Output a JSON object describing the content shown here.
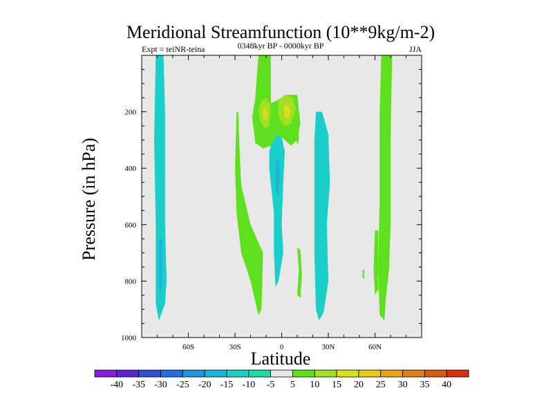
{
  "chart_data": {
    "type": "contour",
    "title": "Meridional Streamfunction (10**9kg/m-2)",
    "subtitle_left": "Expt = teiNR-teina",
    "subtitle_center": "0348kyr BP - 0000kyr BP",
    "subtitle_right": "JJA",
    "xlabel": "Latitude",
    "ylabel": "Pressure (in hPa)",
    "xlim": [
      -90,
      90
    ],
    "ylim": [
      1000,
      0
    ],
    "x_ticks": [
      {
        "value": -60,
        "label": "60S"
      },
      {
        "value": -30,
        "label": "30S"
      },
      {
        "value": 0,
        "label": "0"
      },
      {
        "value": 30,
        "label": "30N"
      },
      {
        "value": 60,
        "label": "60N"
      }
    ],
    "y_ticks": [
      {
        "value": 200,
        "label": "200"
      },
      {
        "value": 400,
        "label": "400"
      },
      {
        "value": 600,
        "label": "600"
      },
      {
        "value": 800,
        "label": "800"
      },
      {
        "value": 1000,
        "label": "1000"
      }
    ],
    "colorbar": {
      "labels": [
        "-40",
        "-35",
        "-30",
        "-25",
        "-20",
        "-15",
        "-10",
        "-5",
        "5",
        "10",
        "15",
        "20",
        "25",
        "30",
        "35",
        "40"
      ],
      "colors": [
        "#8a1be0",
        "#5a24d6",
        "#2f4fdc",
        "#1f6fe6",
        "#1b97e0",
        "#19b6d8",
        "#19cfc8",
        "#1ed9a8",
        "#e8e8e8",
        "#5fe01e",
        "#a0e020",
        "#d4e020",
        "#e8c818",
        "#e8a416",
        "#e07e14",
        "#dc5a12",
        "#d8300e"
      ]
    },
    "regions": [
      {
        "name": "sh-polar-negative-cell",
        "level": -10,
        "points": [
          [
            -81,
            0
          ],
          [
            -76,
            0
          ],
          [
            -75,
            200
          ],
          [
            -75,
            400
          ],
          [
            -75,
            600
          ],
          [
            -74,
            800
          ],
          [
            -75,
            880
          ],
          [
            -79,
            940
          ],
          [
            -81,
            880
          ],
          [
            -81,
            600
          ],
          [
            -82,
            300
          ]
        ]
      },
      {
        "name": "sh-polar-inner-core",
        "level": -15,
        "points": [
          [
            -79,
            650
          ],
          [
            -77,
            650
          ],
          [
            -77,
            800
          ],
          [
            -78,
            860
          ],
          [
            -79,
            800
          ]
        ]
      },
      {
        "name": "nh-highlat-positive-cell",
        "level": 5,
        "points": [
          [
            64,
            0
          ],
          [
            71,
            0
          ],
          [
            70,
            300
          ],
          [
            70,
            600
          ],
          [
            69,
            760
          ],
          [
            67,
            860
          ],
          [
            66,
            940
          ],
          [
            63,
            920
          ],
          [
            62,
            760
          ],
          [
            63,
            500
          ],
          [
            63,
            200
          ]
        ]
      },
      {
        "name": "nh-highlat-small-patch",
        "level": 5,
        "points": [
          [
            60,
            620
          ],
          [
            62,
            620
          ],
          [
            62,
            830
          ],
          [
            60,
            850
          ],
          [
            59,
            760
          ]
        ]
      },
      {
        "name": "nh-highlat-tiny-patch",
        "level": 5,
        "points": [
          [
            52,
            760
          ],
          [
            53,
            760
          ],
          [
            53,
            790
          ],
          [
            52,
            790
          ]
        ]
      },
      {
        "name": "tropical-upper-positive-cell",
        "level": 5,
        "points": [
          [
            -15,
            0
          ],
          [
            -7,
            0
          ],
          [
            -7,
            170
          ],
          [
            -3,
            160
          ],
          [
            3,
            140
          ],
          [
            10,
            140
          ],
          [
            12,
            240
          ],
          [
            10,
            300
          ],
          [
            6,
            320
          ],
          [
            0,
            290
          ],
          [
            -3,
            280
          ],
          [
            -7,
            320
          ],
          [
            -12,
            330
          ],
          [
            -17,
            310
          ],
          [
            -19,
            220
          ],
          [
            -17,
            150
          ]
        ]
      },
      {
        "name": "tropical-upper-core-left",
        "level": 10,
        "points": [
          [
            -13,
            160
          ],
          [
            -10,
            150
          ],
          [
            -7,
            180
          ],
          [
            -8,
            250
          ],
          [
            -11,
            260
          ],
          [
            -14,
            230
          ],
          [
            -15,
            190
          ]
        ]
      },
      {
        "name": "tropical-upper-core-right",
        "level": 10,
        "points": [
          [
            -2,
            160
          ],
          [
            2,
            140
          ],
          [
            7,
            150
          ],
          [
            9,
            190
          ],
          [
            6,
            240
          ],
          [
            2,
            250
          ],
          [
            -2,
            220
          ]
        ]
      },
      {
        "name": "tropical-upper-maximum-left",
        "level": 15,
        "points": [
          [
            -12,
            190
          ],
          [
            -10,
            185
          ],
          [
            -9,
            210
          ],
          [
            -10,
            230
          ],
          [
            -12,
            225
          ]
        ]
      },
      {
        "name": "tropical-upper-maximum-right",
        "level": 15,
        "points": [
          [
            1,
            180
          ],
          [
            4,
            175
          ],
          [
            6,
            200
          ],
          [
            4,
            225
          ],
          [
            2,
            220
          ]
        ]
      },
      {
        "name": "sh-subtropical-positive-band",
        "level": 5,
        "points": [
          [
            -29,
            200
          ],
          [
            -28,
            200
          ],
          [
            -27,
            350
          ],
          [
            -26,
            460
          ],
          [
            -20,
            600
          ],
          [
            -12,
            700
          ],
          [
            -13,
            900
          ],
          [
            -15,
            920
          ],
          [
            -20,
            800
          ],
          [
            -26,
            700
          ],
          [
            -29,
            560
          ],
          [
            -30,
            400
          ]
        ]
      },
      {
        "name": "tropical-lower-positive-streak",
        "level": 5,
        "points": [
          [
            10,
            680
          ],
          [
            12,
            690
          ],
          [
            13,
            780
          ],
          [
            12,
            860
          ],
          [
            10,
            850
          ],
          [
            11,
            760
          ]
        ]
      },
      {
        "name": "tropical-small-positive-patch",
        "level": 5,
        "points": [
          [
            9,
            190
          ],
          [
            11,
            190
          ],
          [
            11,
            300
          ],
          [
            10,
            320
          ],
          [
            9,
            260
          ]
        ]
      },
      {
        "name": "tropical-negative-cell",
        "level": -10,
        "points": [
          [
            -7,
            320
          ],
          [
            -3,
            280
          ],
          [
            0,
            290
          ],
          [
            2,
            340
          ],
          [
            1,
            450
          ],
          [
            0,
            600
          ],
          [
            1,
            700
          ],
          [
            -2,
            800
          ],
          [
            -4,
            820
          ],
          [
            -5,
            700
          ],
          [
            -5,
            560
          ],
          [
            -8,
            400
          ],
          [
            -8,
            340
          ]
        ]
      },
      {
        "name": "tropical-negative-core",
        "level": -15,
        "points": [
          [
            -4,
            380
          ],
          [
            -2,
            360
          ],
          [
            -1,
            420
          ],
          [
            -2,
            500
          ],
          [
            -4,
            480
          ]
        ]
      },
      {
        "name": "nh-subtropical-negative-cell",
        "level": -10,
        "points": [
          [
            22,
            200
          ],
          [
            26,
            200
          ],
          [
            30,
            280
          ],
          [
            31,
            450
          ],
          [
            29,
            600
          ],
          [
            30,
            800
          ],
          [
            27,
            910
          ],
          [
            24,
            940
          ],
          [
            22,
            900
          ],
          [
            21,
            700
          ],
          [
            21,
            500
          ],
          [
            21,
            300
          ]
        ]
      }
    ]
  }
}
